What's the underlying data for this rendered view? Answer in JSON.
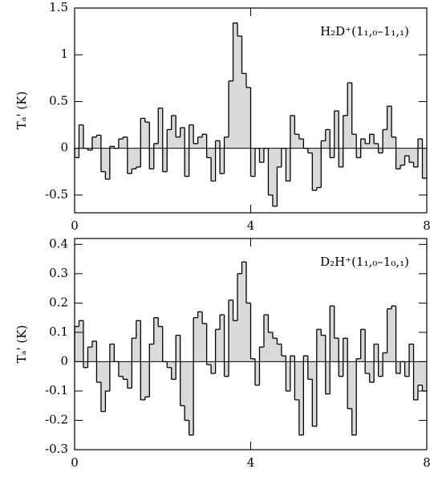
{
  "chart_data": [
    {
      "type": "histogram",
      "annotation": "H₂D⁺(1₁,₀–1₁,₁)",
      "ylabel": "Tₐ' (K)",
      "color": "#d9d9d9",
      "bins": [
        0,
        0.1,
        0.2,
        0.3,
        0.4,
        0.5,
        0.6,
        0.7,
        0.8,
        0.9,
        1,
        1.1,
        1.2,
        1.3,
        1.4,
        1.5,
        1.6,
        1.7,
        1.8,
        1.9,
        2,
        2.1,
        2.2,
        2.3,
        2.4,
        2.5,
        2.6,
        2.7,
        2.8,
        2.9,
        3,
        3.1,
        3.2,
        3.3,
        3.4,
        3.5,
        3.6,
        3.7,
        3.8,
        3.9,
        4,
        4.1,
        4.2,
        4.3,
        4.4,
        4.5,
        4.6,
        4.7,
        4.8,
        4.9,
        5,
        5.1,
        5.2,
        5.3,
        5.4,
        5.5,
        5.6,
        5.7,
        5.8,
        5.9,
        6,
        6.1,
        6.2,
        6.3,
        6.4,
        6.5,
        6.6,
        6.7,
        6.8,
        6.9,
        7,
        7.1,
        7.2,
        7.3,
        7.4,
        7.5,
        7.6,
        7.7,
        7.8,
        7.9,
        8
      ],
      "values": [
        -0.1,
        0.25,
        0.0,
        -0.02,
        0.12,
        0.14,
        -0.25,
        -0.33,
        0.02,
        0.0,
        0.1,
        0.12,
        -0.27,
        -0.22,
        -0.2,
        0.32,
        0.28,
        -0.22,
        0.05,
        0.43,
        -0.25,
        0.2,
        0.35,
        0.12,
        0.22,
        -0.3,
        0.25,
        0.05,
        0.12,
        0.15,
        -0.1,
        -0.35,
        0.08,
        -0.27,
        0.12,
        0.72,
        1.34,
        1.2,
        0.8,
        0.65,
        -0.3,
        0.0,
        -0.15,
        0.0,
        -0.5,
        -0.62,
        -0.2,
        0.0,
        -0.35,
        0.35,
        0.15,
        0.1,
        0.0,
        -0.05,
        -0.45,
        -0.42,
        0.08,
        0.2,
        -0.1,
        0.4,
        -0.2,
        0.35,
        0.7,
        0.15,
        -0.1,
        0.1,
        0.05,
        0.15,
        0.05,
        -0.05,
        0.2,
        0.45,
        0.12,
        -0.22,
        -0.18,
        -0.08,
        -0.15,
        -0.2,
        0.1,
        -0.32
      ],
      "xlim": [
        0,
        8
      ],
      "xticks": [
        0,
        4,
        8
      ],
      "ylim": [
        -0.69,
        1.5
      ],
      "yticks": [
        {
          "value": -0.5,
          "label": "-0.5"
        },
        0,
        0.5,
        1,
        1.5
      ]
    },
    {
      "type": "histogram",
      "annotation": "D₂H⁺(1₁,₀–1₀,₁)",
      "ylabel": "Tₐ' (K)",
      "color": "#d9d9d9",
      "bins": [
        0,
        0.1,
        0.2,
        0.3,
        0.4,
        0.5,
        0.6,
        0.7,
        0.8,
        0.9,
        1,
        1.1,
        1.2,
        1.3,
        1.4,
        1.5,
        1.6,
        1.7,
        1.8,
        1.9,
        2,
        2.1,
        2.2,
        2.3,
        2.4,
        2.5,
        2.6,
        2.7,
        2.8,
        2.9,
        3,
        3.1,
        3.2,
        3.3,
        3.4,
        3.5,
        3.6,
        3.7,
        3.8,
        3.9,
        4,
        4.1,
        4.2,
        4.3,
        4.4,
        4.5,
        4.6,
        4.7,
        4.8,
        4.9,
        5,
        5.1,
        5.2,
        5.3,
        5.4,
        5.5,
        5.6,
        5.7,
        5.8,
        5.9,
        6,
        6.1,
        6.2,
        6.3,
        6.4,
        6.5,
        6.6,
        6.7,
        6.8,
        6.9,
        7,
        7.1,
        7.2,
        7.3,
        7.4,
        7.5,
        7.6,
        7.7,
        7.8,
        7.9,
        8
      ],
      "values": [
        0.12,
        0.14,
        -0.02,
        0.05,
        0.07,
        -0.07,
        -0.17,
        -0.1,
        0.06,
        0.0,
        -0.05,
        -0.06,
        -0.09,
        0.08,
        0.14,
        -0.13,
        -0.12,
        0.06,
        0.15,
        0.12,
        0.0,
        -0.02,
        -0.06,
        0.09,
        -0.15,
        -0.2,
        -0.25,
        0.15,
        0.17,
        0.13,
        -0.01,
        -0.04,
        0.11,
        0.16,
        -0.05,
        0.21,
        0.14,
        0.3,
        0.34,
        0.2,
        0.01,
        -0.08,
        0.05,
        0.16,
        0.1,
        0.08,
        0.06,
        0.02,
        -0.1,
        0.02,
        -0.13,
        -0.25,
        0.02,
        -0.06,
        -0.22,
        0.11,
        0.09,
        -0.11,
        0.19,
        0.08,
        -0.05,
        0.08,
        -0.16,
        -0.25,
        0.01,
        0.11,
        -0.04,
        -0.07,
        0.06,
        -0.05,
        0.03,
        0.18,
        0.19,
        -0.04,
        0.0,
        -0.05,
        0.06,
        -0.13,
        -0.08,
        -0.1
      ],
      "xlim": [
        0,
        8
      ],
      "xticks": [
        0,
        4,
        8
      ],
      "ylim": [
        -0.3,
        0.42
      ],
      "yticks": [
        {
          "value": -0.3,
          "label": "-0.3"
        },
        {
          "value": -0.2,
          "label": "-0.2"
        },
        {
          "value": -0.1,
          "label": "-0.1"
        },
        0,
        0.1,
        0.2,
        0.3,
        0.4
      ]
    }
  ]
}
